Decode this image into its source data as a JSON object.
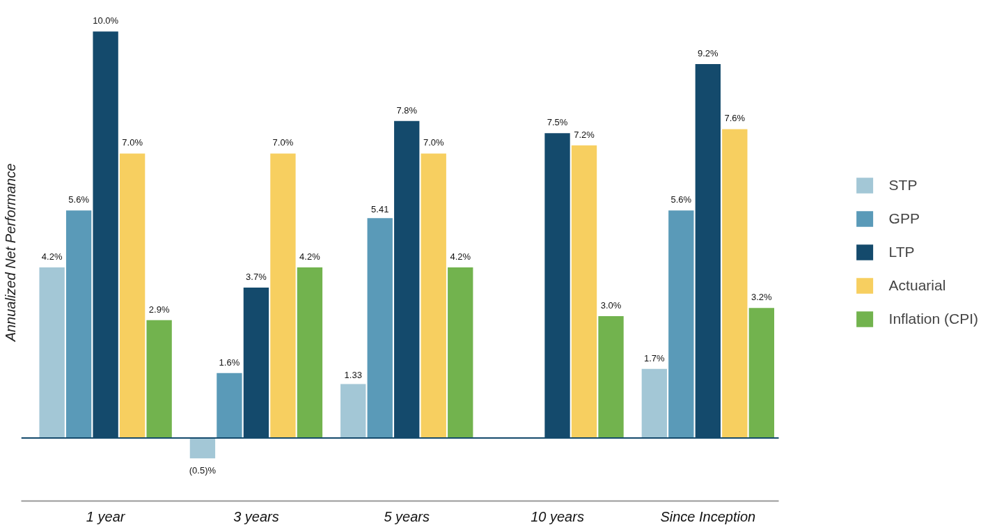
{
  "chart_data": {
    "type": "bar",
    "ylabel": "Annualized Net Performance",
    "categories": [
      "1 year",
      "3 years",
      "5 years",
      "10 years",
      "Since Inception"
    ],
    "series": [
      {
        "name": "STP",
        "color": "#a3c7d6",
        "values": [
          4.2,
          -0.5,
          1.33,
          null,
          1.7
        ],
        "value_labels": [
          "4.2%",
          "(0.5)%",
          "1.33",
          null,
          "1.7%"
        ]
      },
      {
        "name": "GPP",
        "color": "#5a9ab8",
        "values": [
          5.6,
          1.6,
          5.41,
          null,
          5.6
        ],
        "value_labels": [
          "5.6%",
          "1.6%",
          "5.41",
          null,
          "5.6%"
        ]
      },
      {
        "name": "LTP",
        "color": "#144a6c",
        "values": [
          10.0,
          3.7,
          7.8,
          7.5,
          9.2
        ],
        "value_labels": [
          "10.0%",
          "3.7%",
          "7.8%",
          "7.5%",
          "9.2%"
        ]
      },
      {
        "name": "Actuarial",
        "color": "#f7cf60",
        "values": [
          7.0,
          7.0,
          7.0,
          7.2,
          7.6
        ],
        "value_labels": [
          "7.0%",
          "7.0%",
          "7.0%",
          "7.2%",
          "7.6%"
        ]
      },
      {
        "name": "Inflation (CPI)",
        "color": "#72b34e",
        "values": [
          2.9,
          4.2,
          4.2,
          3.0,
          3.2
        ],
        "value_labels": [
          "2.9%",
          "4.2%",
          "4.2%",
          "3.0%",
          "3.2%"
        ]
      }
    ],
    "ref_lines": [
      {
        "axis": "y",
        "value": 0,
        "color": "#144a6c"
      }
    ],
    "tick_labels": "x",
    "grid": false,
    "legend": "right"
  }
}
